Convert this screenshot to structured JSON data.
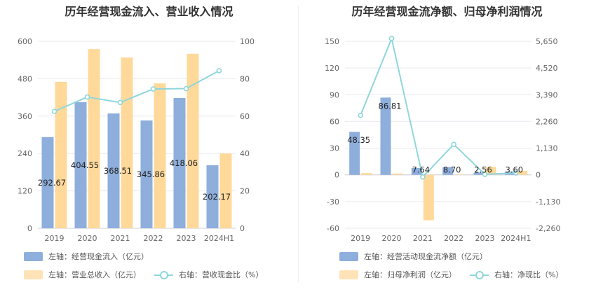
{
  "colors": {
    "bar_blue": "#8eaedc",
    "bar_orange": "#ffd99a",
    "line_cyan": "#8fd6dc",
    "grid": "#e9e9f0"
  },
  "chart_data": [
    {
      "type": "bar",
      "title": "历年经营现金流入、营业收入情况",
      "categories": [
        "2019",
        "2020",
        "2021",
        "2022",
        "2023",
        "2024H1"
      ],
      "y_left": {
        "ticks": [
          "0",
          "120",
          "240",
          "360",
          "480",
          "600"
        ],
        "min": 0,
        "max": 600
      },
      "y_right": {
        "ticks": [
          "0",
          "20",
          "40",
          "60",
          "80",
          "100"
        ],
        "min": 0,
        "max": 100
      },
      "series": [
        {
          "name": "左轴：经营现金流入（亿元）",
          "type": "bar",
          "axis": "left",
          "values": [
            292.67,
            404.55,
            368.51,
            345.86,
            418.06,
            202.17
          ],
          "labels": [
            "292.67",
            "404.55",
            "368.51",
            "345.86",
            "418.06",
            "202.17"
          ]
        },
        {
          "name": "左轴：营业总收入（亿元）",
          "type": "bar",
          "axis": "left",
          "values": [
            470,
            575,
            548,
            465,
            560,
            240
          ]
        },
        {
          "name": "右轴：营收现金比（%）",
          "type": "line",
          "axis": "right",
          "values": [
            62.5,
            70.2,
            67.3,
            74.5,
            74.7,
            84.3
          ]
        }
      ],
      "legend": [
        "左轴：经营现金流入（亿元）",
        "左轴：营业总收入（亿元）",
        "右轴：营收现金比（%）"
      ]
    },
    {
      "type": "bar",
      "title": "历年经营现金流净额、归母净利润情况",
      "categories": [
        "2019",
        "2020",
        "2021",
        "2022",
        "2023",
        "2024H1"
      ],
      "y_left": {
        "ticks": [
          "-60",
          "-30",
          "0",
          "30",
          "60",
          "90",
          "120",
          "150"
        ],
        "min": -60,
        "max": 150
      },
      "y_right": {
        "ticks": [
          "-2,260",
          "-1,130",
          "0",
          "1,130",
          "2,260",
          "3,390",
          "4,520",
          "5,650"
        ],
        "min": -2260,
        "max": 5650
      },
      "series": [
        {
          "name": "左轴：经营活动现金流净额（亿元）",
          "type": "bar",
          "axis": "left",
          "values": [
            48.35,
            86.81,
            7.64,
            8.7,
            2.56,
            3.6
          ],
          "labels": [
            "48.35",
            "86.81",
            "7.64",
            "8.70",
            "2.56",
            "3.60"
          ]
        },
        {
          "name": "左轴：归母净利润（亿元）",
          "type": "bar",
          "axis": "left",
          "values": [
            2.0,
            1.5,
            -51,
            0.5,
            9.0,
            4.5
          ]
        },
        {
          "name": "右轴：净现比（%）",
          "type": "line",
          "axis": "right",
          "values": [
            2520,
            5770,
            -90,
            1290,
            20,
            80
          ]
        }
      ],
      "legend": [
        "左轴：经营活动现金流净额（亿元）",
        "左轴：归母净利润（亿元）",
        "右轴：净现比（%）"
      ]
    }
  ]
}
